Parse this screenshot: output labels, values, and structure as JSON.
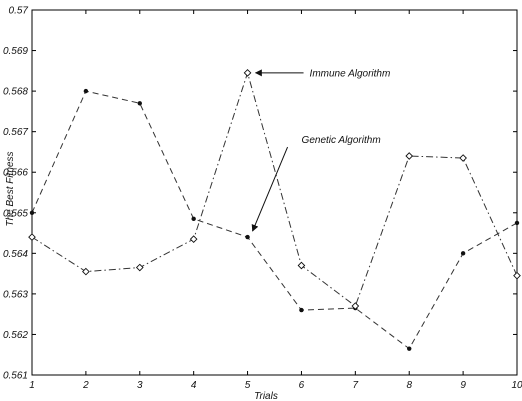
{
  "chart_data": {
    "type": "line",
    "title": "",
    "xlabel": "Trials",
    "ylabel": "The Best Fitness",
    "x": [
      1,
      2,
      3,
      4,
      5,
      6,
      7,
      8,
      9,
      10
    ],
    "xlim": [
      1,
      10
    ],
    "ylim": [
      0.561,
      0.57
    ],
    "x_ticks": [
      "1",
      "2",
      "3",
      "4",
      "5",
      "6",
      "7",
      "8",
      "9",
      "10"
    ],
    "y_ticks": [
      "0.561",
      "0.562",
      "0.563",
      "0.564",
      "0.565",
      "0.566",
      "0.567",
      "0.568",
      "0.569",
      "0.57"
    ],
    "grid": false,
    "series": [
      {
        "values": [
          0.565,
          0.568,
          0.5677,
          0.56485,
          0.5644,
          0.5626,
          0.56265,
          0.56165,
          0.564,
          0.56475
        ],
        "marker": "dot",
        "line_style": "dashed"
      },
      {
        "values": [
          0.5644,
          0.56355,
          0.56365,
          0.56435,
          0.56845,
          0.5637,
          0.5627,
          0.5664,
          0.56635,
          0.56345
        ],
        "marker": "diamond",
        "line_style": "dashdot"
      }
    ],
    "annotations": [
      {
        "text": "Immune Algorithm",
        "x": 5,
        "y": 0.56845
      },
      {
        "text": "Genetic Algorithm",
        "x": 5,
        "y": 0.5644
      }
    ],
    "colors": {
      "axis": "#000000",
      "line": "#333333",
      "background": "#ffffff"
    }
  }
}
